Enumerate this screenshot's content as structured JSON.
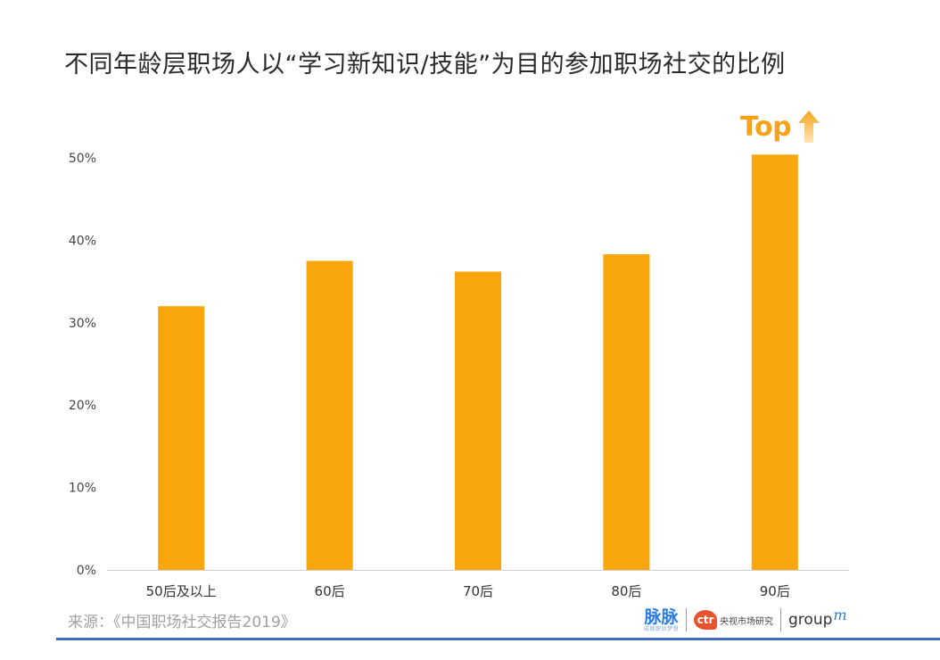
{
  "title": "不同年龄层职场人以“学习新知识/技能”为目的参加职场社交的比例",
  "top_badge": "Top",
  "source": "来源：《中国职场社交报告2019》",
  "logos": {
    "maimai": "脉脉",
    "maimai_sub": "成就职业梦想",
    "ctr": "ctr",
    "ctr_text": "央视市场研究",
    "groupm": "group",
    "groupm_m": "m"
  },
  "colors": {
    "bar": "#f9a50c",
    "top_badge": "#f7a21b",
    "axis": "#d0d0d0",
    "bottom_line": "#3b6bc0"
  },
  "chart_data": {
    "type": "bar",
    "categories": [
      "50后及以上",
      "60后",
      "70后",
      "80后",
      "90后"
    ],
    "values": [
      32.0,
      37.5,
      36.2,
      38.3,
      50.4
    ],
    "yticks": [
      "0%",
      "10%",
      "20%",
      "30%",
      "40%",
      "50%"
    ],
    "ylim": [
      0,
      50
    ],
    "grid": false,
    "legend": "none",
    "title": "不同年龄层职场人以“学习新知识/技能”为目的参加职场社交的比例"
  }
}
